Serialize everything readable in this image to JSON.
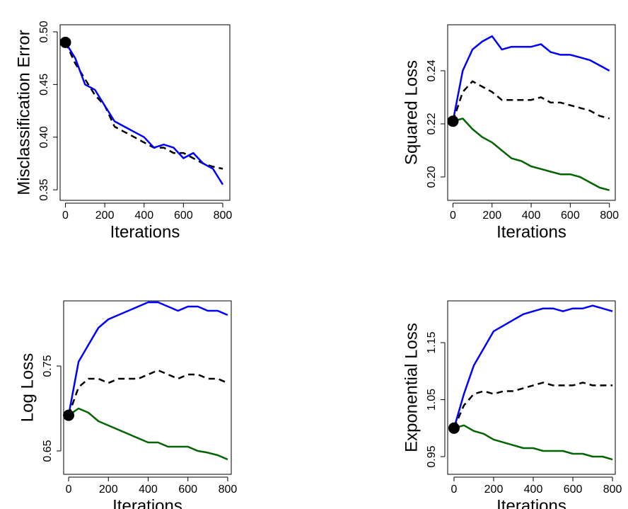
{
  "chart_data": [
    {
      "type": "line",
      "ylabel": "Misclassification Error",
      "xlabel": "Iterations",
      "x": [
        0,
        50,
        100,
        150,
        200,
        250,
        300,
        350,
        400,
        450,
        500,
        550,
        600,
        650,
        700,
        750,
        800
      ],
      "xlim": [
        -27,
        836
      ],
      "xticks": [
        0,
        200,
        400,
        600,
        800
      ],
      "ylim": [
        0.34,
        0.5067
      ],
      "yticks": [
        0.35,
        {
          "value": 0.4,
          "label": "0.40"
        },
        0.45,
        {
          "value": 0.5,
          "label": "0.50"
        }
      ],
      "series": [
        {
          "color": "#000000",
          "dashed": true,
          "values": [
            0.49,
            0.47,
            0.455,
            0.44,
            0.43,
            0.41,
            0.405,
            0.4,
            0.395,
            0.39,
            0.39,
            0.385,
            0.385,
            0.38,
            0.375,
            0.372,
            0.37
          ]
        },
        {
          "color": "#0000ff",
          "dashed": false,
          "values": [
            0.49,
            0.475,
            0.45,
            0.445,
            0.43,
            0.415,
            0.41,
            0.405,
            0.4,
            0.39,
            0.393,
            0.39,
            0.38,
            0.385,
            0.375,
            0.37,
            0.355
          ]
        }
      ],
      "start_point": {
        "x": 0,
        "y": 0.49
      }
    },
    {
      "type": "line",
      "ylabel": "Squared Loss",
      "xlabel": "Iterations",
      "x": [
        0,
        50,
        100,
        150,
        200,
        250,
        300,
        350,
        400,
        450,
        500,
        550,
        600,
        650,
        700,
        750,
        800
      ],
      "xlim": [
        -27,
        830
      ],
      "xticks": [
        0,
        200,
        400,
        600,
        800
      ],
      "ylim": [
        0.1912,
        0.2573
      ],
      "yticks": [
        {
          "value": 0.2,
          "label": "0.20"
        },
        0.22,
        0.24
      ],
      "series": [
        {
          "color": "#0000ff",
          "dashed": false,
          "values": [
            0.221,
            0.24,
            0.248,
            0.251,
            0.253,
            0.248,
            0.249,
            0.249,
            0.249,
            0.25,
            0.247,
            0.246,
            0.246,
            0.245,
            0.244,
            0.242,
            0.24
          ]
        },
        {
          "color": "#000000",
          "dashed": true,
          "values": [
            0.221,
            0.232,
            0.236,
            0.234,
            0.232,
            0.229,
            0.229,
            0.229,
            0.229,
            0.23,
            0.228,
            0.228,
            0.227,
            0.226,
            0.225,
            0.223,
            0.222
          ]
        },
        {
          "color": "#006400",
          "dashed": false,
          "values": [
            0.221,
            0.222,
            0.218,
            0.215,
            0.213,
            0.21,
            0.207,
            0.206,
            0.204,
            0.203,
            0.202,
            0.201,
            0.201,
            0.2,
            0.198,
            0.196,
            0.195
          ]
        }
      ],
      "start_point": {
        "x": 0,
        "y": 0.221
      }
    },
    {
      "type": "line",
      "ylabel": "Log Loss",
      "xlabel": "Iterations",
      "x": [
        0,
        50,
        100,
        150,
        200,
        250,
        300,
        350,
        400,
        450,
        500,
        550,
        600,
        650,
        700,
        750,
        800
      ],
      "xlim": [
        -25,
        818
      ],
      "xticks": [
        0,
        200,
        400,
        600,
        800
      ],
      "ylim": [
        0.6225,
        0.8267
      ],
      "yticks": [
        0.65,
        0.75
      ],
      "series": [
        {
          "color": "#0000ff",
          "dashed": false,
          "values": [
            0.692,
            0.755,
            0.775,
            0.795,
            0.805,
            0.81,
            0.815,
            0.82,
            0.825,
            0.825,
            0.82,
            0.815,
            0.82,
            0.82,
            0.815,
            0.815,
            0.81
          ]
        },
        {
          "color": "#000000",
          "dashed": true,
          "values": [
            0.692,
            0.725,
            0.735,
            0.735,
            0.73,
            0.735,
            0.735,
            0.735,
            0.74,
            0.745,
            0.74,
            0.735,
            0.74,
            0.74,
            0.735,
            0.735,
            0.73
          ]
        },
        {
          "color": "#006400",
          "dashed": false,
          "values": [
            0.692,
            0.7,
            0.695,
            0.685,
            0.68,
            0.675,
            0.67,
            0.665,
            0.66,
            0.66,
            0.655,
            0.655,
            0.655,
            0.65,
            0.648,
            0.645,
            0.64
          ]
        }
      ],
      "start_point": {
        "x": 0,
        "y": 0.692
      }
    },
    {
      "type": "line",
      "ylabel": "Exponential Loss",
      "xlabel": "Iterations",
      "x": [
        0,
        50,
        100,
        150,
        200,
        250,
        300,
        350,
        400,
        450,
        500,
        550,
        600,
        650,
        700,
        750,
        800
      ],
      "xlim": [
        -32,
        814
      ],
      "xticks": [
        0,
        200,
        400,
        600,
        800
      ],
      "ylim": [
        0.919,
        1.2233
      ],
      "yticks": [
        0.95,
        1.05,
        1.15
      ],
      "series": [
        {
          "color": "#0000ff",
          "dashed": false,
          "values": [
            1.0,
            1.06,
            1.11,
            1.14,
            1.17,
            1.18,
            1.19,
            1.2,
            1.205,
            1.21,
            1.21,
            1.205,
            1.21,
            1.21,
            1.215,
            1.21,
            1.205
          ]
        },
        {
          "color": "#000000",
          "dashed": true,
          "values": [
            1.0,
            1.04,
            1.06,
            1.065,
            1.06,
            1.065,
            1.065,
            1.07,
            1.075,
            1.08,
            1.075,
            1.075,
            1.075,
            1.08,
            1.075,
            1.075,
            1.075
          ]
        },
        {
          "color": "#006400",
          "dashed": false,
          "values": [
            1.0,
            1.005,
            0.995,
            0.99,
            0.98,
            0.975,
            0.97,
            0.965,
            0.965,
            0.96,
            0.96,
            0.96,
            0.955,
            0.955,
            0.95,
            0.95,
            0.945
          ]
        }
      ],
      "start_point": {
        "x": 0,
        "y": 1.0
      }
    }
  ]
}
